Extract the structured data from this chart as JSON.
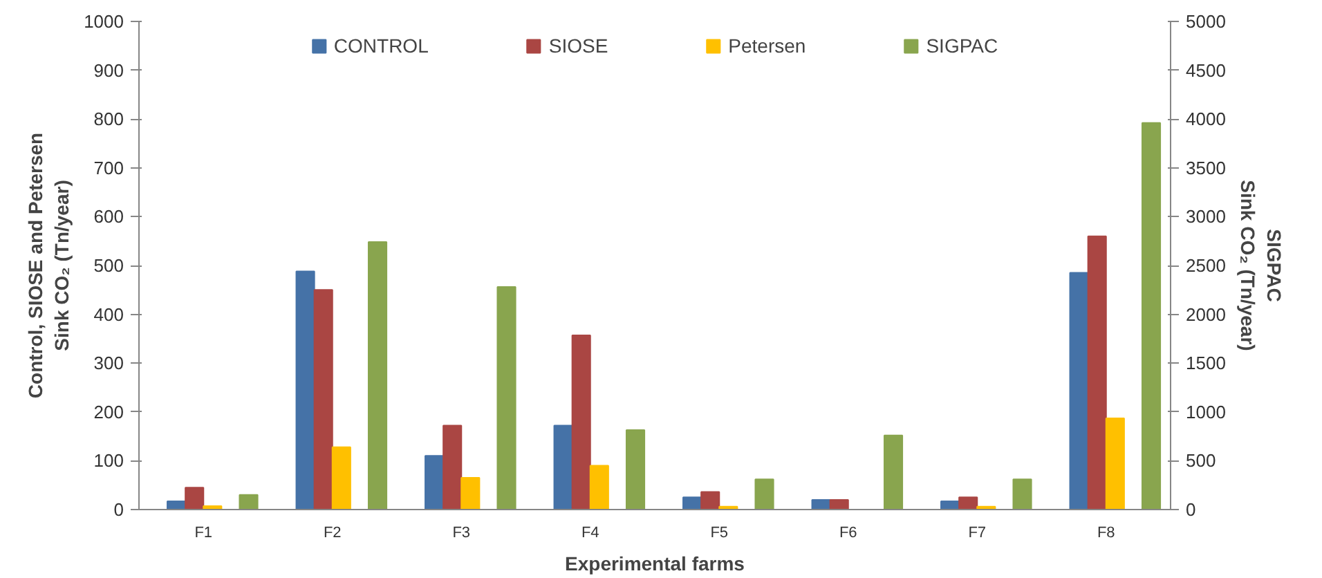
{
  "chart_data": {
    "type": "bar",
    "xlabel": "Experimental farms",
    "ylabel": "Control, SIOSE and Petersen\nSink CO₂ (Tn/year)",
    "y2label": "SIGPAC\nSink CO₂ (Tn/year)",
    "categories": [
      "F1",
      "F2",
      "F3",
      "F4",
      "F5",
      "F6",
      "F7",
      "F8"
    ],
    "series": [
      {
        "name": "CONTROL",
        "color": "#4572a7",
        "values": [
          17,
          488,
          110,
          172,
          25,
          20,
          17,
          485
        ]
      },
      {
        "name": "SIOSE",
        "color": "#aa4643",
        "values": [
          45,
          450,
          172,
          357,
          36,
          20,
          25,
          560
        ]
      },
      {
        "name": "Petersen",
        "color": "#ffc000",
        "values": [
          7,
          128,
          65,
          90,
          6,
          0,
          6,
          187
        ]
      },
      {
        "name": "SIGPAC",
        "color": "#89a54e",
        "axis": "y2",
        "values": [
          150,
          2740,
          2280,
          815,
          310,
          760,
          310,
          3960
        ]
      }
    ],
    "ylim": [
      0,
      1000
    ],
    "yticks": [
      0,
      100,
      200,
      300,
      400,
      500,
      600,
      700,
      800,
      900,
      1000
    ],
    "y2lim": [
      0,
      5000
    ],
    "y2ticks": [
      0,
      500,
      1000,
      1500,
      2000,
      2500,
      3000,
      3500,
      4000,
      4500,
      5000
    ],
    "legend": "top",
    "grid": false
  }
}
